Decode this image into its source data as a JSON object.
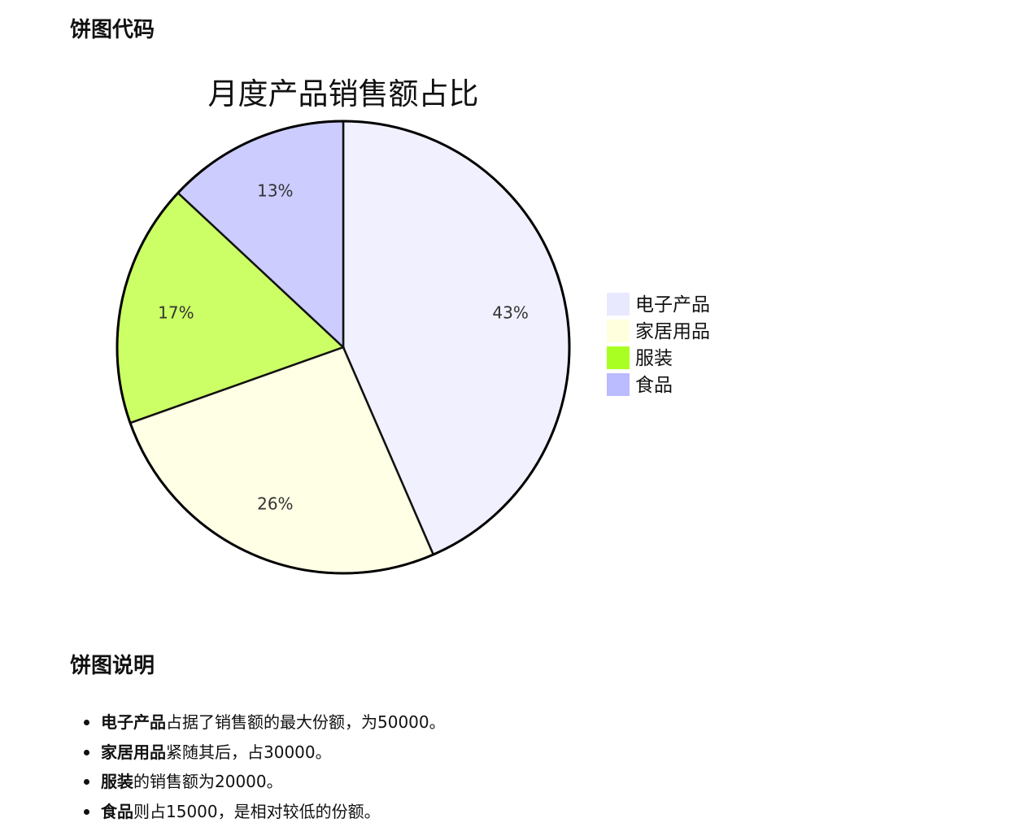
{
  "headings": {
    "code": "饼图代码",
    "description": "饼图说明"
  },
  "chart_data": {
    "type": "pie",
    "title": "月度产品销售额占比",
    "categories": [
      "电子产品",
      "家居用品",
      "服装",
      "食品"
    ],
    "values": [
      50000,
      30000,
      20000,
      15000
    ],
    "percent_labels": [
      "43%",
      "26%",
      "17%",
      "13%"
    ],
    "colors": [
      "#f0f0ff",
      "#ffffe5",
      "#ccff66",
      "#ccccff"
    ],
    "legend_colors": [
      "#e8e8ff",
      "#ffffdd",
      "#aaff22",
      "#bbbbff"
    ],
    "legend_position": "right",
    "start_angle": "12 o'clock, clockwise"
  },
  "notes": [
    {
      "bold": "电子产品",
      "text": "占据了销售额的最大份额，为50000。"
    },
    {
      "bold": "家居用品",
      "text": "紧随其后，占30000。"
    },
    {
      "bold": "服装",
      "text": "的销售额为20000。"
    },
    {
      "bold": "食品",
      "text": "则占15000，是相对较低的份额。"
    }
  ]
}
